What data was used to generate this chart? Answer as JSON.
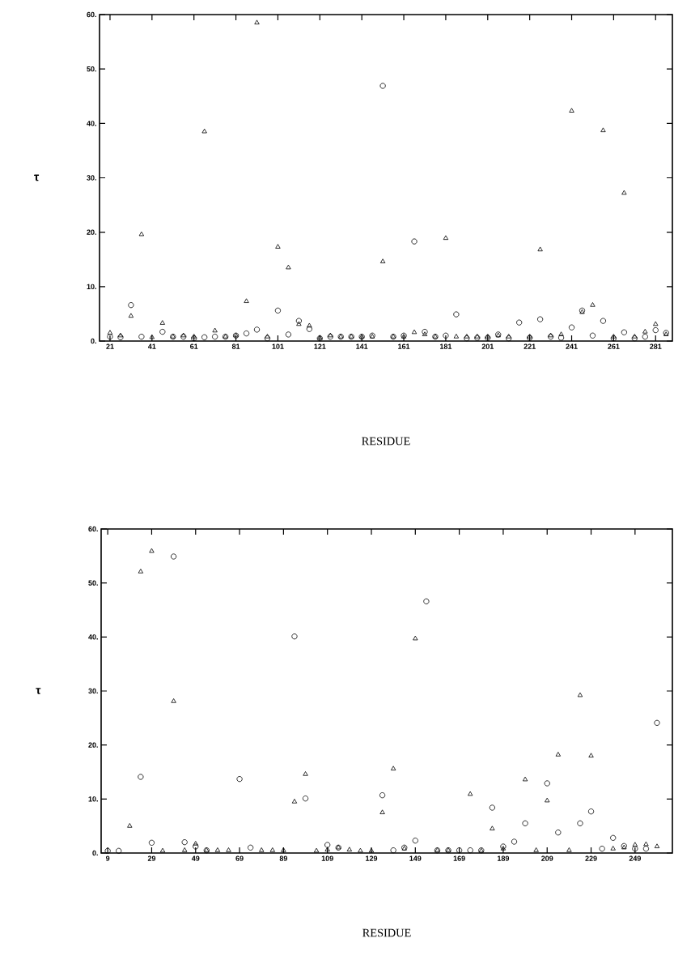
{
  "chart_data": [
    {
      "type": "scatter",
      "xlabel": "RESIDUE",
      "ylabel": "τ",
      "xlim": [
        16,
        289
      ],
      "ylim": [
        0,
        60
      ],
      "xticks": [
        21,
        41,
        61,
        81,
        101,
        121,
        141,
        161,
        181,
        201,
        221,
        241,
        261,
        281
      ],
      "yticks": [
        {
          "value": 0,
          "label": "0."
        },
        {
          "value": 10,
          "label": "10."
        },
        {
          "value": 20,
          "label": "20."
        },
        {
          "value": 30,
          "label": "30."
        },
        {
          "value": 40,
          "label": "40."
        },
        {
          "value": 50,
          "label": "50."
        },
        {
          "value": 60,
          "label": "60."
        }
      ],
      "series": [
        {
          "marker": "circle",
          "color": "#000000",
          "x": [
            21,
            26,
            31,
            36,
            46,
            51,
            56,
            61,
            66,
            71,
            76,
            81,
            86,
            91,
            96,
            101,
            106,
            111,
            116,
            121,
            126,
            131,
            136,
            141,
            146,
            151,
            156,
            161,
            166,
            171,
            176,
            181,
            186,
            191,
            196,
            201,
            206,
            211,
            216,
            221,
            226,
            231,
            236,
            241,
            246,
            251,
            256,
            261,
            266,
            271,
            276,
            281,
            286
          ],
          "values": [
            0.8,
            0.7,
            6.6,
            0.8,
            1.7,
            0.8,
            0.8,
            0.5,
            0.7,
            0.8,
            0.8,
            1.0,
            1.4,
            2.1,
            0.5,
            5.6,
            1.2,
            3.7,
            2.2,
            0.5,
            0.8,
            0.8,
            0.8,
            0.8,
            1.0,
            46.9,
            0.8,
            1.0,
            18.3,
            1.7,
            0.8,
            1.0,
            4.9,
            0.5,
            0.6,
            0.6,
            1.2,
            0.5,
            3.4,
            0.6,
            4.0,
            0.8,
            0.6,
            2.5,
            5.6,
            1.0,
            3.7,
            0.5,
            1.6,
            0.5,
            0.8,
            2.0,
            1.5
          ]
        },
        {
          "marker": "triangle",
          "color": "#000000",
          "x": [
            21,
            26,
            31,
            36,
            41,
            46,
            51,
            56,
            61,
            66,
            71,
            76,
            81,
            86,
            91,
            96,
            101,
            106,
            111,
            116,
            121,
            126,
            131,
            136,
            141,
            146,
            151,
            156,
            161,
            166,
            171,
            176,
            181,
            186,
            191,
            196,
            201,
            206,
            211,
            221,
            226,
            231,
            236,
            241,
            246,
            251,
            256,
            261,
            266,
            271,
            276,
            281,
            286
          ],
          "values": [
            1.5,
            1.0,
            4.6,
            19.6,
            0.7,
            3.3,
            0.8,
            1.0,
            0.8,
            38.5,
            1.9,
            0.8,
            1.0,
            7.3,
            58.5,
            0.8,
            17.3,
            13.5,
            3.1,
            2.8,
            0.6,
            1.0,
            0.8,
            0.8,
            0.8,
            0.8,
            14.6,
            0.8,
            0.8,
            1.6,
            1.2,
            0.8,
            18.9,
            0.8,
            0.8,
            0.8,
            0.8,
            1.0,
            0.8,
            0.8,
            16.8,
            1.0,
            1.2,
            42.3,
            5.3,
            6.6,
            38.7,
            0.8,
            27.2,
            0.8,
            1.7,
            3.1,
            1.2
          ]
        }
      ]
    },
    {
      "type": "scatter",
      "xlabel": "RESIDUE",
      "ylabel": "τ",
      "xlim": [
        6,
        266
      ],
      "ylim": [
        0,
        60
      ],
      "xticks": [
        9,
        29,
        49,
        69,
        89,
        109,
        129,
        149,
        169,
        189,
        209,
        229,
        249
      ],
      "yticks": [
        {
          "value": 0,
          "label": "0."
        },
        {
          "value": 10,
          "label": "10."
        },
        {
          "value": 20,
          "label": "20."
        },
        {
          "value": 30,
          "label": "30."
        },
        {
          "value": 40,
          "label": "40."
        },
        {
          "value": 50,
          "label": "50."
        },
        {
          "value": 60,
          "label": "60."
        }
      ],
      "series": [
        {
          "marker": "circle",
          "color": "#000000",
          "x": [
            9,
            14,
            24,
            29,
            39,
            44,
            49,
            54,
            69,
            74,
            94,
            99,
            109,
            114,
            134,
            139,
            144,
            149,
            154,
            159,
            164,
            169,
            174,
            179,
            184,
            189,
            194,
            199,
            209,
            214,
            224,
            229,
            234,
            239,
            244,
            249,
            254,
            259
          ],
          "values": [
            0.4,
            0.4,
            14.1,
            1.9,
            54.9,
            2.0,
            1.2,
            0.5,
            13.7,
            1.0,
            40.1,
            10.1,
            1.5,
            1.0,
            10.7,
            0.5,
            1.0,
            2.3,
            46.6,
            0.5,
            0.5,
            0.5,
            0.5,
            0.5,
            8.4,
            1.2,
            2.1,
            5.5,
            12.9,
            3.8,
            5.5,
            7.7,
            0.8,
            2.8,
            1.3,
            0.8,
            0.8,
            24.1
          ]
        },
        {
          "marker": "triangle",
          "color": "#000000",
          "x": [
            19,
            24,
            29,
            34,
            39,
            44,
            49,
            54,
            59,
            64,
            79,
            84,
            89,
            94,
            99,
            104,
            109,
            114,
            119,
            124,
            129,
            134,
            139,
            144,
            149,
            159,
            164,
            174,
            179,
            184,
            189,
            199,
            204,
            209,
            214,
            219,
            224,
            229,
            239,
            244,
            249,
            254,
            259
          ],
          "values": [
            5.0,
            52.1,
            55.9,
            0.4,
            28.1,
            0.5,
            1.7,
            0.5,
            0.5,
            0.5,
            0.5,
            0.5,
            0.5,
            9.5,
            14.6,
            0.4,
            0.6,
            1.0,
            0.6,
            0.4,
            0.4,
            7.5,
            15.6,
            0.8,
            39.7,
            0.5,
            0.5,
            10.9,
            0.4,
            4.5,
            0.8,
            13.6,
            0.5,
            9.7,
            18.2,
            0.5,
            29.2,
            18.0,
            0.8,
            1.0,
            1.5,
            1.6,
            1.2
          ]
        }
      ]
    }
  ]
}
